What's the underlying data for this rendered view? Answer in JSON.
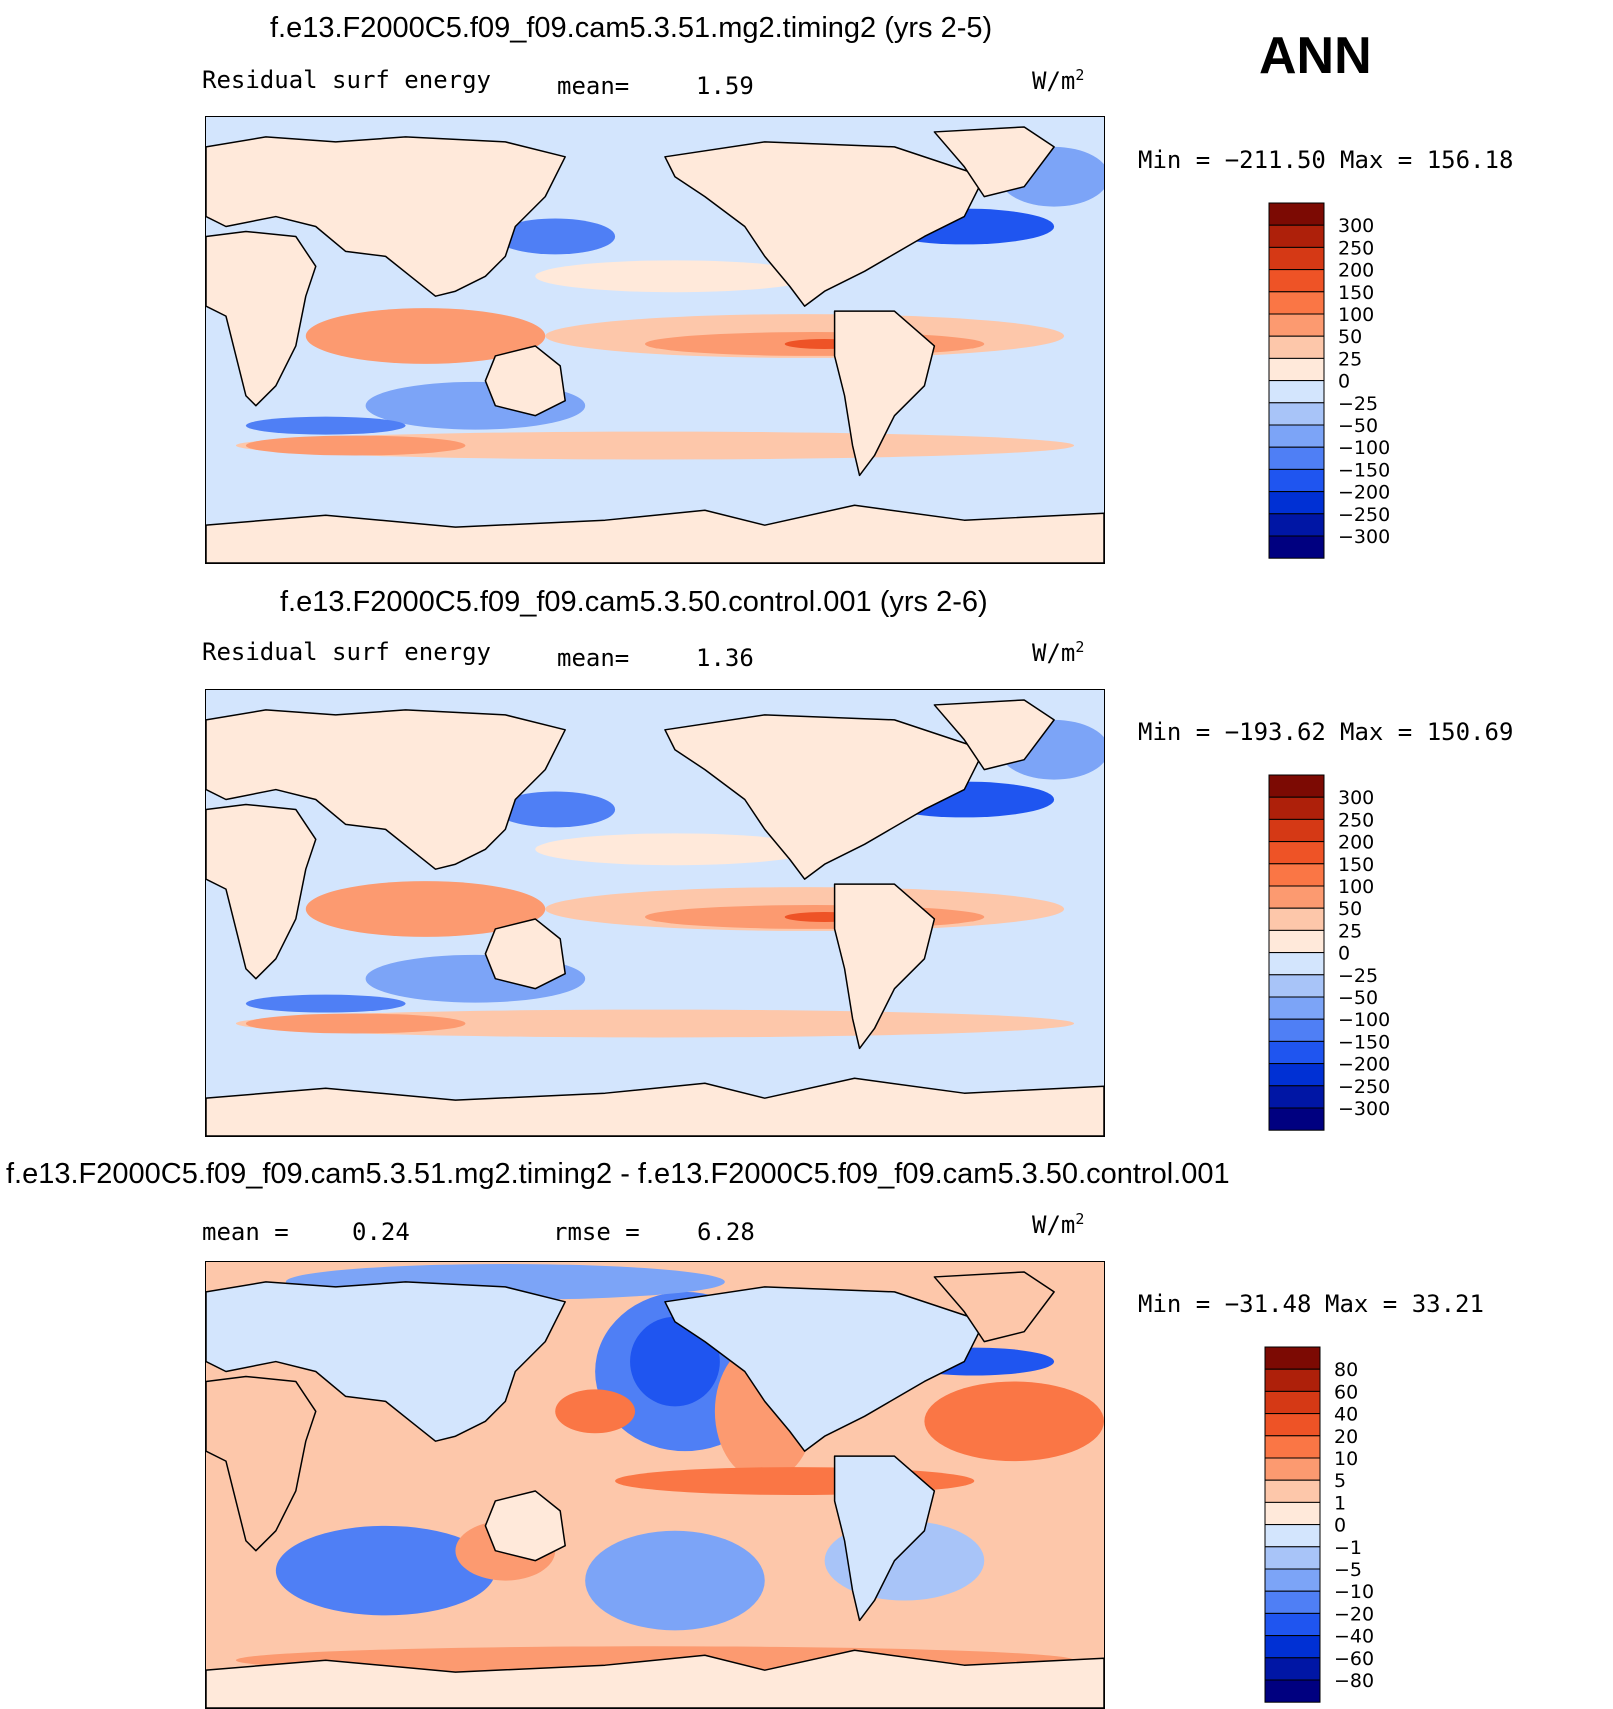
{
  "season_label": "ANN",
  "colors": {
    "blues": [
      "#000080",
      "#0016a5",
      "#0030d4",
      "#1f55f0",
      "#4f7ff5",
      "#7ca4f7",
      "#a8c4f8",
      "#d3e5fd"
    ],
    "reds": [
      "#ffe9da",
      "#fdc7aa",
      "#fc9a70",
      "#fa7645",
      "#ee5326",
      "#d53915",
      "#ae200a",
      "#7c0a03"
    ],
    "coast": "#000000"
  },
  "chart_data": [
    {
      "type": "heatmap",
      "title": "f.e13.F2000C5.f09_f09.cam5.3.51.mg2.timing2 (yrs 2-5)",
      "variable": "Residual surf energy",
      "mean_label": "mean=",
      "mean_value": "1.59",
      "units": "W/m",
      "units_exp": "2",
      "min_label": "Min = −211.50",
      "max_label": "Max = 156.18",
      "min": -211.5,
      "max": 156.18,
      "levels": [
        "300",
        "250",
        "200",
        "150",
        "100",
        "50",
        "25",
        "0",
        "−25",
        "−50",
        "−100",
        "−150",
        "−200",
        "−250",
        "−300"
      ]
    },
    {
      "type": "heatmap",
      "title": "f.e13.F2000C5.f09_f09.cam5.3.50.control.001 (yrs 2-6)",
      "variable": "Residual surf energy",
      "mean_label": "mean=",
      "mean_value": "1.36",
      "units": "W/m",
      "units_exp": "2",
      "min_label": "Min = −193.62",
      "max_label": "Max = 150.69",
      "min": -193.62,
      "max": 150.69,
      "levels": [
        "300",
        "250",
        "200",
        "150",
        "100",
        "50",
        "25",
        "0",
        "−25",
        "−50",
        "−100",
        "−150",
        "−200",
        "−250",
        "−300"
      ]
    },
    {
      "type": "heatmap",
      "title": "f.e13.F2000C5.f09_f09.cam5.3.51.mg2.timing2 - f.e13.F2000C5.f09_f09.cam5.3.50.control.001",
      "mean_label": "mean =",
      "mean_value": "0.24",
      "rmse_label": "rmse =",
      "rmse_value": "6.28",
      "units": "W/m",
      "units_exp": "2",
      "min_label": "Min = −31.48",
      "max_label": "Max =  33.21",
      "min": -31.48,
      "max": 33.21,
      "levels": [
        "80",
        "60",
        "40",
        "20",
        "10",
        "5",
        "1",
        "0",
        "−1",
        "−5",
        "−10",
        "−20",
        "−40",
        "−60",
        "−80"
      ]
    }
  ]
}
